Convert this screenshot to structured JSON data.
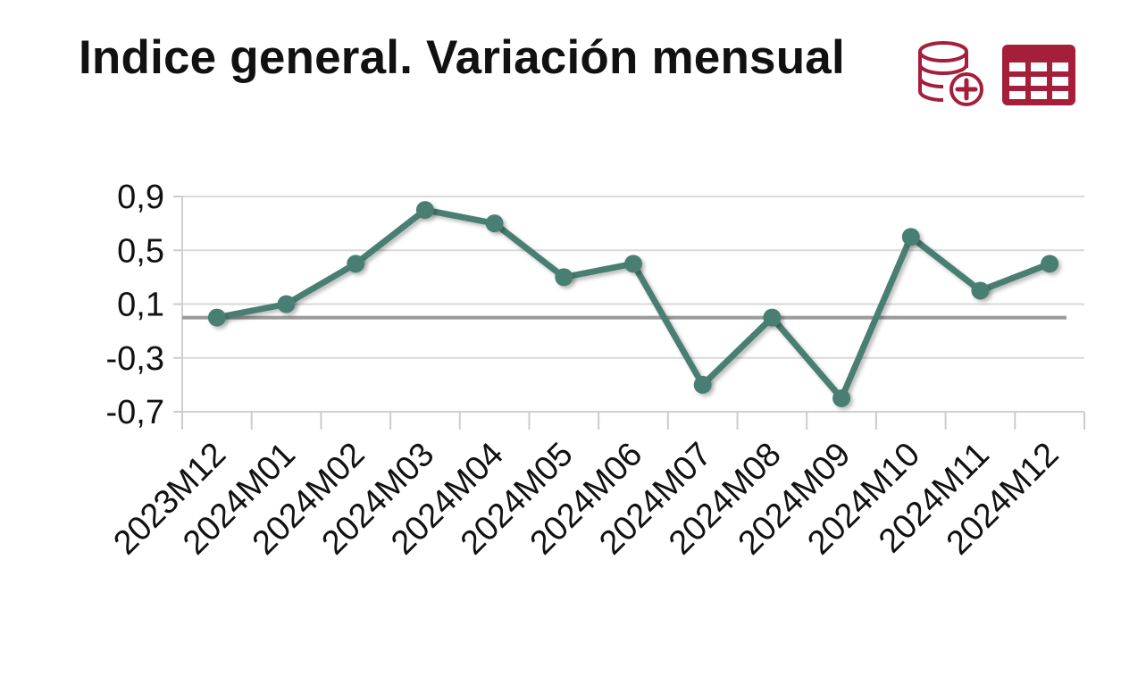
{
  "header": {
    "title": "Indice general. Variación mensual",
    "icons": {
      "database": "database-add-icon",
      "table": "table-icon"
    },
    "accent_color": "#A51E3A"
  },
  "chart_data": {
    "type": "line",
    "title": "Indice general. Variación mensual",
    "xlabel": "",
    "ylabel": "",
    "categories": [
      "2023M12",
      "2024M01",
      "2024M02",
      "2024M03",
      "2024M04",
      "2024M05",
      "2024M06",
      "2024M07",
      "2024M08",
      "2024M09",
      "2024M10",
      "2024M11",
      "2024M12"
    ],
    "series": [
      {
        "values": [
          0.0,
          0.1,
          0.4,
          0.8,
          0.7,
          0.3,
          0.4,
          -0.5,
          0.0,
          -0.6,
          0.6,
          0.2,
          0.4
        ]
      }
    ],
    "yticks": [
      "0,9",
      "0,5",
      "0,1",
      "-0,3",
      "-0,7"
    ],
    "ytick_values": [
      0.9,
      0.5,
      0.1,
      -0.3,
      -0.7
    ],
    "ylim": [
      -0.7,
      0.9
    ],
    "grid": true,
    "zero_line": true,
    "colors": {
      "line": "#4A7F72",
      "grid": "#d9d9d9",
      "zero_line": "#9a9a9a"
    }
  }
}
